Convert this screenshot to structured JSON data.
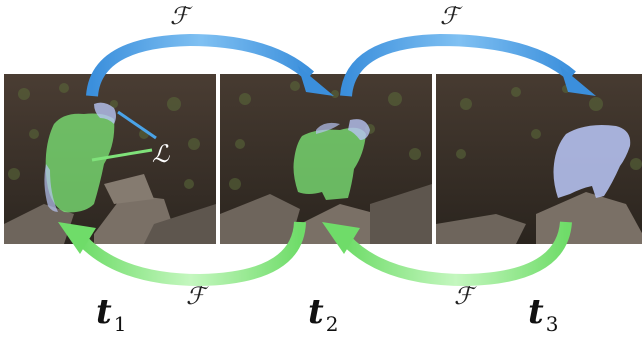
{
  "frames": [
    {
      "time_label": "t",
      "time_subscript": "1"
    },
    {
      "time_label": "t",
      "time_subscript": "2"
    },
    {
      "time_label": "t",
      "time_subscript": "3"
    }
  ],
  "forward_arrows": [
    {
      "label": "ℱ"
    },
    {
      "label": "ℱ"
    }
  ],
  "backward_arrows": [
    {
      "label": "ℱ"
    },
    {
      "label": "ℱ"
    }
  ],
  "loss": {
    "label": "ℒ"
  },
  "colors": {
    "forward_arrow": "#4aa3e8",
    "backward_arrow": "#7fe27a",
    "mask_green": "#7ff07a",
    "mask_blue": "#b6c3f2",
    "scene_dark": "#3a3128"
  }
}
